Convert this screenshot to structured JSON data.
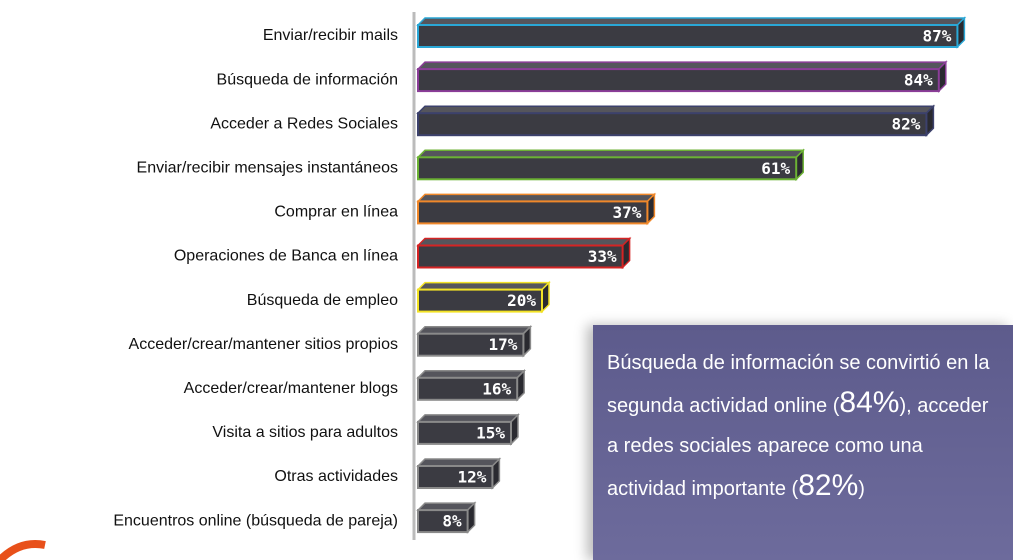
{
  "chart_data": {
    "type": "bar",
    "orientation": "horizontal",
    "categories": [
      "Enviar/recibir mails",
      "Búsqueda de información",
      "Acceder a Redes Sociales",
      "Enviar/recibir mensajes instantáneos",
      "Comprar en línea",
      "Operaciones de Banca en línea",
      "Búsqueda de empleo",
      "Acceder/crear/mantener sitios propios",
      "Acceder/crear/mantener blogs",
      "Visita a sitios para adultos",
      "Otras actividades",
      "Encuentros online (búsqueda de pareja)"
    ],
    "values": [
      87,
      84,
      82,
      61,
      37,
      33,
      20,
      17,
      16,
      15,
      12,
      8
    ],
    "value_labels": [
      "87%",
      "84%",
      "82%",
      "61%",
      "37%",
      "33%",
      "20%",
      "17%",
      "16%",
      "15%",
      "12%",
      "8%"
    ],
    "colors": [
      "#2aa7d6",
      "#8b3d98",
      "#3c416c",
      "#6cb234",
      "#f0882a",
      "#d42424",
      "#f2e226",
      "#8a8a8a",
      "#8a8a8a",
      "#8a8a8a",
      "#8a8a8a",
      "#8a8a8a"
    ],
    "annotation": [
      "Búsqueda de información se convirtió en la segunda actividad online (",
      "84%",
      "), acceder a redes sociales aparece como una actividad importante (",
      "82%",
      ")"
    ]
  }
}
